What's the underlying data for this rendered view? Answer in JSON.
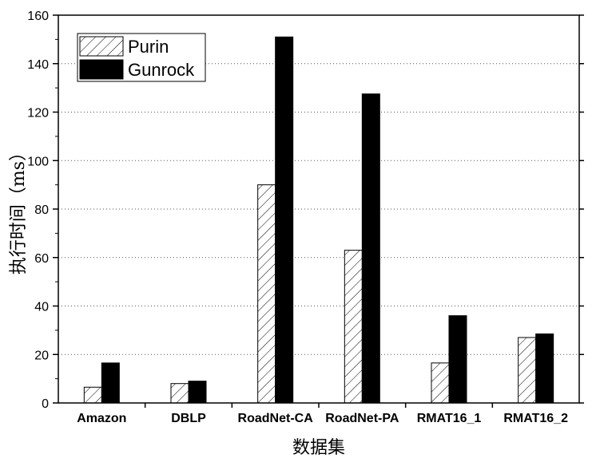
{
  "chart_data": {
    "type": "bar",
    "categories": [
      "Amazon",
      "DBLP",
      "RoadNet-CA",
      "RoadNet-PA",
      "RMAT16_1",
      "RMAT16_2"
    ],
    "series": [
      {
        "name": "Purin",
        "values": [
          6.5,
          8,
          90,
          63,
          16.5,
          27
        ],
        "fill": "hatch"
      },
      {
        "name": "Gunrock",
        "values": [
          16.5,
          9,
          151,
          127.5,
          36,
          28.5
        ],
        "fill": "#000000"
      }
    ],
    "xlabel": "数据集",
    "ylabel": "执行时间（ms）",
    "ylim": [
      0,
      160
    ],
    "yticks": [
      0,
      20,
      40,
      60,
      80,
      100,
      120,
      140,
      160
    ],
    "grid": "dotted-horizontal",
    "legend": "top-left"
  }
}
